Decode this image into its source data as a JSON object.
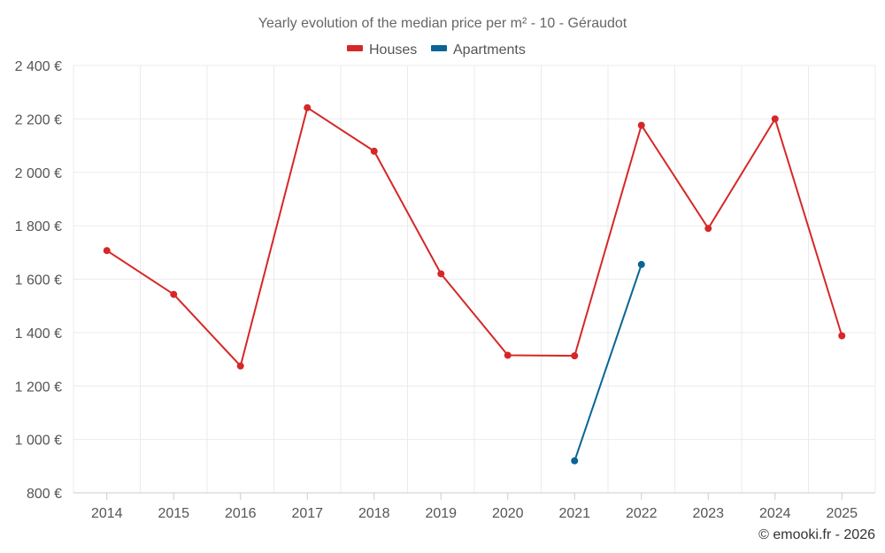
{
  "chart_data": {
    "type": "line",
    "title": "Yearly evolution of the median price per m² - 10 - Géraudot",
    "xlabel": "",
    "ylabel": "",
    "categories": [
      "2014",
      "2015",
      "2016",
      "2017",
      "2018",
      "2019",
      "2020",
      "2021",
      "2022",
      "2023",
      "2024",
      "2025"
    ],
    "ylim": [
      800,
      2400
    ],
    "yticks": [
      800,
      1000,
      1200,
      1400,
      1600,
      1800,
      2000,
      2200,
      2400
    ],
    "ytick_labels": [
      "800 €",
      "1 000 €",
      "1 200 €",
      "1 400 €",
      "1 600 €",
      "1 800 €",
      "2 000 €",
      "2 200 €",
      "2 400 €"
    ],
    "grid": true,
    "legend_position": "top-center",
    "series": [
      {
        "name": "Houses",
        "color": "#d62728",
        "values": [
          1707,
          1543,
          1275,
          2242,
          2079,
          1620,
          1315,
          1313,
          2176,
          1790,
          2200,
          1388
        ]
      },
      {
        "name": "Apartments",
        "color": "#0a6496",
        "values": [
          null,
          null,
          null,
          null,
          null,
          null,
          null,
          920,
          1655,
          null,
          null,
          null
        ]
      }
    ],
    "credit": "© emooki.fr - 2026"
  }
}
